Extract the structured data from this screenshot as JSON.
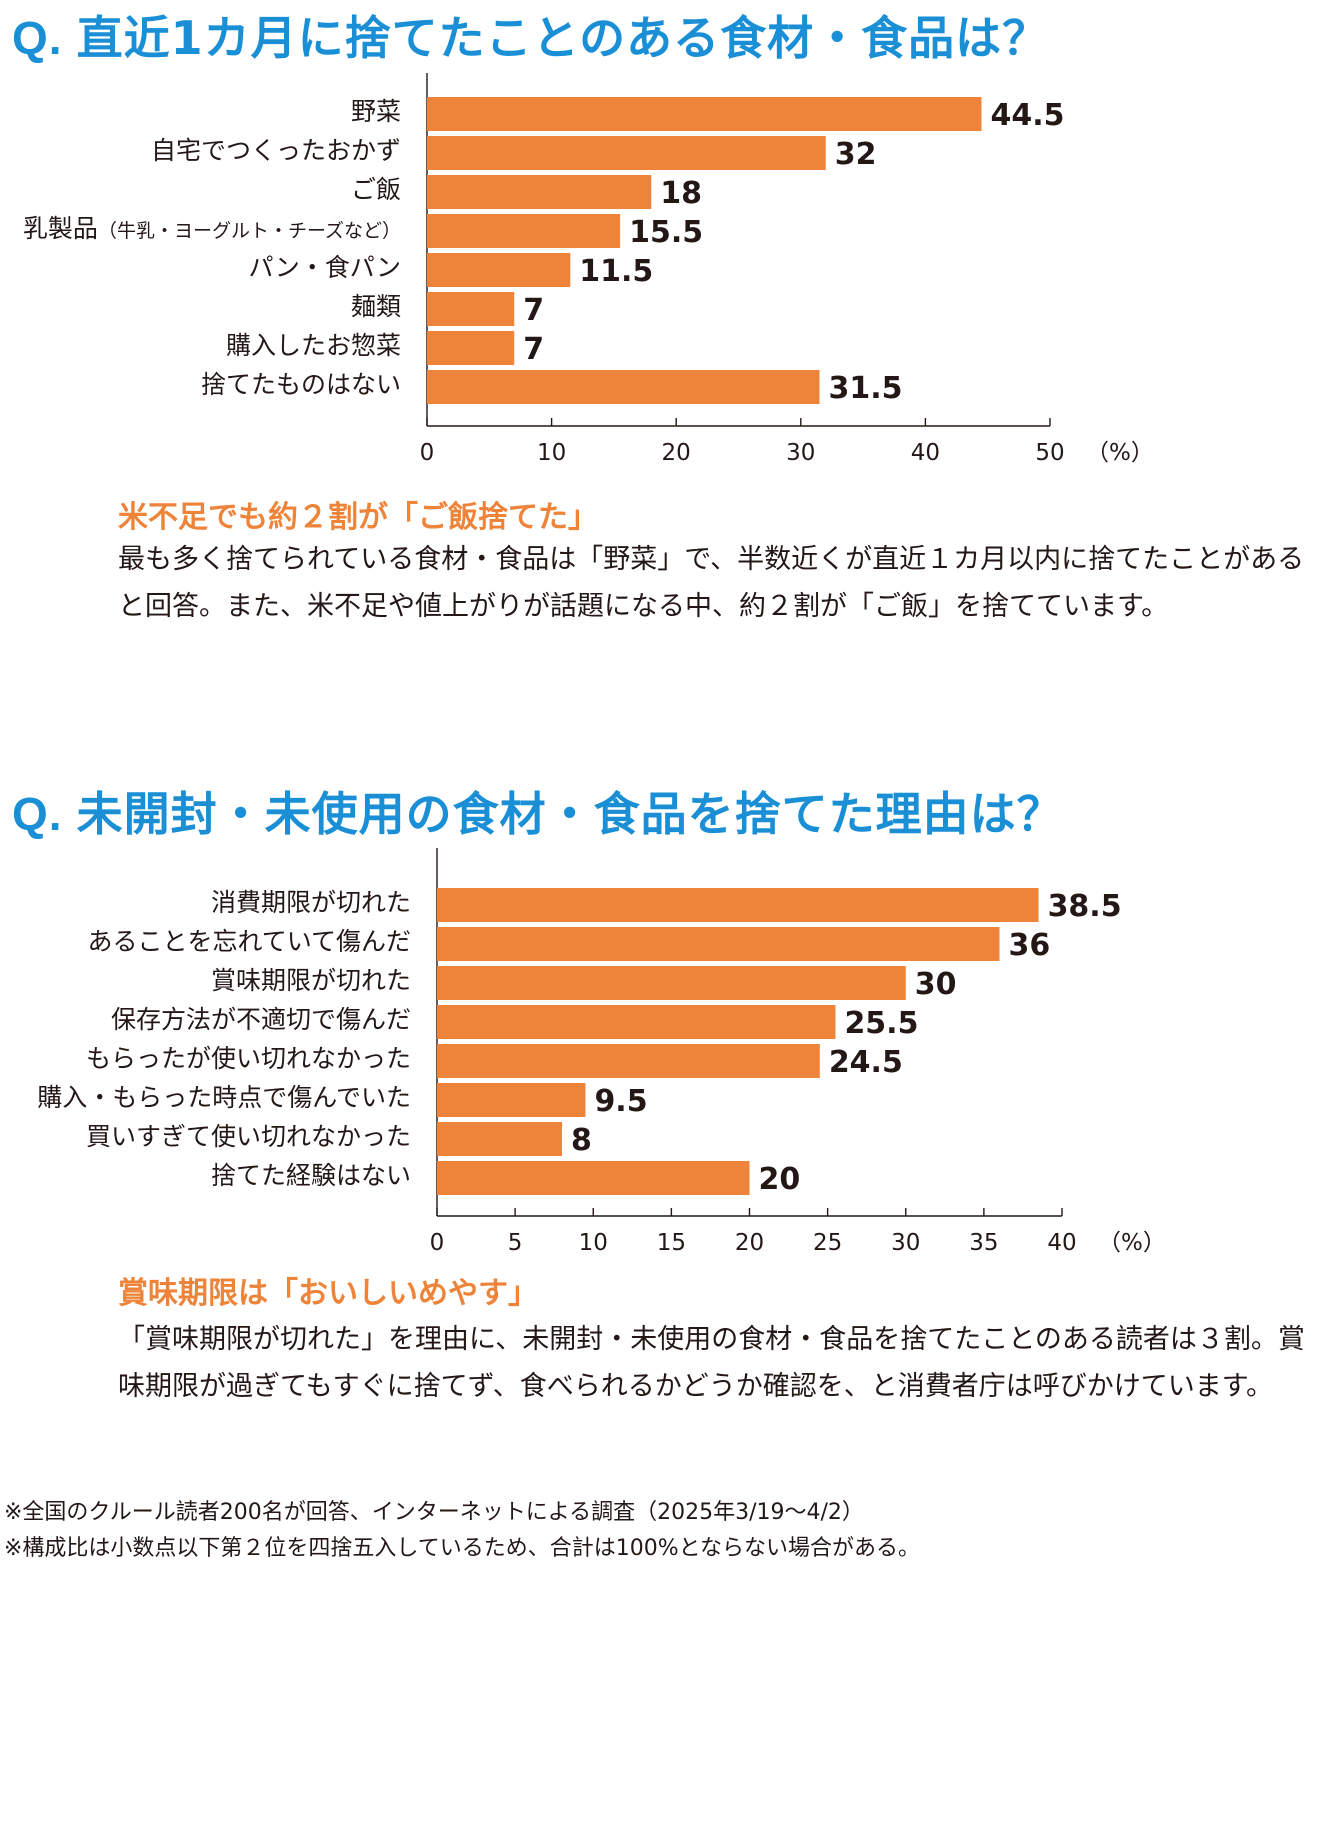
{
  "q1": {
    "mark": "Q.",
    "title": "直近1カ月に捨てたことのある食材・食品は？",
    "subheading": "米不足でも約２割が「ご飯捨てた」",
    "body": "最も多く捨てられている食材・食品は「野菜」で、半数近くが直近１カ月以内に捨てたことがあると回答。また、米不足や値上がりが話題になる中、約２割が「ご飯」を捨てています。"
  },
  "q2": {
    "mark": "Q.",
    "title": "未開封・未使用の食材・食品を捨てた理由は？",
    "subheading": "賞味期限は「おいしいめやす」",
    "body": "「賞味期限が切れた」を理由に、未開封・未使用の食材・食品を捨てたことのある読者は３割。賞味期限が過ぎてもすぐに捨てず、食べられるかどうか確認を、と消費者庁は呼びかけています。"
  },
  "notes": [
    "※全国のクルール読者200名が回答、インターネットによる調査（2025年3/19〜4/2）",
    "※構成比は小数点以下第２位を四捨五入しているため、合計は100%とならない場合がある。"
  ],
  "colors": {
    "bar": "#ee843a",
    "question": "#1a8fd6",
    "subheading": "#ee843a"
  },
  "chart_data": [
    {
      "type": "bar",
      "orientation": "horizontal",
      "categories": [
        "野菜",
        "自宅でつくったおかず",
        "ご飯",
        "乳製品（牛乳・ヨーグルト・チーズなど）",
        "パン・食パン",
        "麺類",
        "購入したお惣菜",
        "捨てたものはない"
      ],
      "values": [
        44.5,
        32,
        18,
        15.5,
        11.5,
        7,
        7,
        31.5
      ],
      "value_labels": [
        "44.5",
        "32",
        "18",
        "15.5",
        "11.5",
        "7",
        "7",
        "31.5"
      ],
      "xlim": [
        0,
        50
      ],
      "ticks": [
        0,
        10,
        20,
        30,
        40,
        50
      ],
      "unit": "（%）",
      "grid": false
    },
    {
      "type": "bar",
      "orientation": "horizontal",
      "categories": [
        "消費期限が切れた",
        "あることを忘れていて傷んだ",
        "賞味期限が切れた",
        "保存方法が不適切で傷んだ",
        "もらったが使い切れなかった",
        "購入・もらった時点で傷んでいた",
        "買いすぎて使い切れなかった",
        "捨てた経験はない"
      ],
      "values": [
        38.5,
        36,
        30,
        25.5,
        24.5,
        9.5,
        8,
        20
      ],
      "value_labels": [
        "38.5",
        "36",
        "30",
        "25.5",
        "24.5",
        "9.5",
        "8",
        "20"
      ],
      "xlim": [
        0,
        40
      ],
      "ticks": [
        0,
        5,
        10,
        15,
        20,
        25,
        30,
        35,
        40
      ],
      "unit": "（%）",
      "grid": false
    }
  ]
}
